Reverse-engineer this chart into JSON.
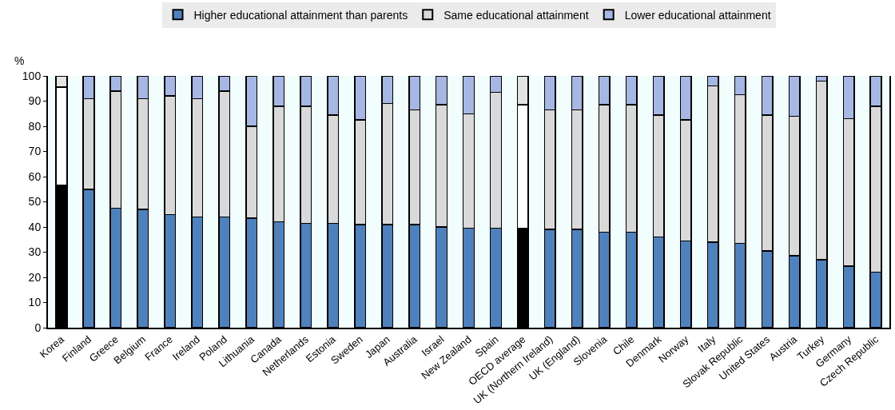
{
  "chart_data": {
    "type": "bar",
    "stacked": true,
    "ylabel": "%",
    "ylim": [
      0,
      100
    ],
    "yticks": [
      0,
      10,
      20,
      30,
      40,
      50,
      60,
      70,
      80,
      90,
      100
    ],
    "legend": "top",
    "grid": false,
    "categories": [
      "Korea",
      "Finland",
      "Greece",
      "Belgium",
      "France",
      "Ireland",
      "Poland",
      "Lithuania",
      "Canada",
      "Netherlands",
      "Estonia",
      "Sweden",
      "Japan",
      "Australia",
      "Israel",
      "New Zealand",
      "Spain",
      "OECD average",
      "UK (Northern Ireland)",
      "UK (England)",
      "Slovenia",
      "Chile",
      "Denmark",
      "Norway",
      "Italy",
      "Slovak Republic",
      "United States",
      "Austria",
      "Turkey",
      "Germany",
      "Czech Republic"
    ],
    "series": [
      {
        "name": "Higher educational attainment than parents",
        "color": "#4f81bd",
        "colors": [
          "#000000",
          "#4f81bd",
          "#4f81bd",
          "#4f81bd",
          "#4f81bd",
          "#4f81bd",
          "#4f81bd",
          "#4f81bd",
          "#4f81bd",
          "#4f81bd",
          "#4f81bd",
          "#4f81bd",
          "#4f81bd",
          "#4f81bd",
          "#4f81bd",
          "#4f81bd",
          "#4f81bd",
          "#000000",
          "#4f81bd",
          "#4f81bd",
          "#4f81bd",
          "#4f81bd",
          "#4f81bd",
          "#4f81bd",
          "#4f81bd",
          "#4f81bd",
          "#4f81bd",
          "#4f81bd",
          "#4f81bd",
          "#4f81bd",
          "#4f81bd"
        ],
        "values": [
          56.5,
          55,
          47.5,
          47,
          45,
          44,
          44,
          43.5,
          42,
          41.5,
          41.5,
          41,
          41,
          41,
          40,
          39.5,
          39.5,
          39.5,
          39,
          39,
          38,
          38,
          36,
          34.5,
          34,
          33.5,
          30.5,
          28.5,
          27,
          24.5,
          22
        ]
      },
      {
        "name": "Same educational attainment",
        "color": "#d9d9d9",
        "colors": [
          "#ffffff",
          "#d9d9d9",
          "#d9d9d9",
          "#d9d9d9",
          "#d9d9d9",
          "#d9d9d9",
          "#d9d9d9",
          "#d9d9d9",
          "#d9d9d9",
          "#d9d9d9",
          "#d9d9d9",
          "#d9d9d9",
          "#d9d9d9",
          "#d9d9d9",
          "#d9d9d9",
          "#d9d9d9",
          "#d9d9d9",
          "#ffffff",
          "#d9d9d9",
          "#d9d9d9",
          "#d9d9d9",
          "#d9d9d9",
          "#d9d9d9",
          "#d9d9d9",
          "#d9d9d9",
          "#d9d9d9",
          "#d9d9d9",
          "#d9d9d9",
          "#d9d9d9",
          "#d9d9d9",
          "#d9d9d9"
        ],
        "values": [
          39,
          36,
          46.5,
          44,
          47,
          47,
          50,
          36.5,
          46,
          46.5,
          43,
          41.5,
          48,
          45.5,
          48.5,
          45.5,
          54,
          49,
          47.5,
          47.5,
          50.5,
          50.5,
          48.5,
          48,
          62,
          59,
          54,
          55.5,
          71,
          58.5,
          66
        ]
      },
      {
        "name": "Lower educational attainment",
        "color": "#a6b7e3",
        "colors": [
          "#e3e3e3",
          "#a6b7e3",
          "#a6b7e3",
          "#a6b7e3",
          "#a6b7e3",
          "#a6b7e3",
          "#a6b7e3",
          "#a6b7e3",
          "#a6b7e3",
          "#a6b7e3",
          "#a6b7e3",
          "#a6b7e3",
          "#a6b7e3",
          "#a6b7e3",
          "#a6b7e3",
          "#a6b7e3",
          "#a6b7e3",
          "#e3e3e3",
          "#a6b7e3",
          "#a6b7e3",
          "#a6b7e3",
          "#a6b7e3",
          "#a6b7e3",
          "#a6b7e3",
          "#a6b7e3",
          "#a6b7e3",
          "#a6b7e3",
          "#a6b7e3",
          "#a6b7e3",
          "#a6b7e3",
          "#a6b7e3"
        ],
        "values": [
          4.5,
          9,
          6,
          9,
          8,
          9,
          6,
          20,
          12,
          12,
          15.5,
          17.5,
          11,
          13.5,
          11.5,
          15,
          6.5,
          11.5,
          13.5,
          13.5,
          11.5,
          11.5,
          15.5,
          17.5,
          4,
          7.5,
          15.5,
          16,
          2,
          17,
          12
        ]
      }
    ]
  }
}
